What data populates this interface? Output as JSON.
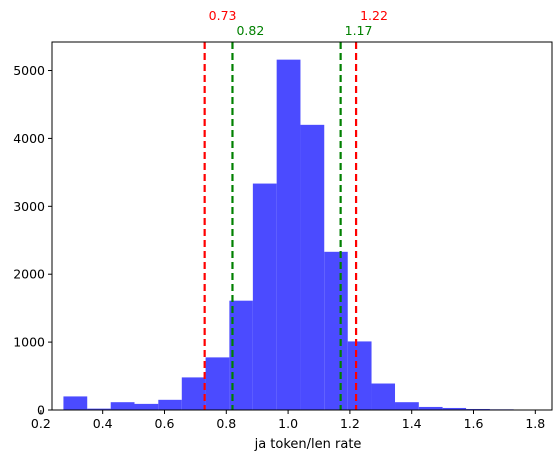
{
  "chart_data": {
    "type": "bar",
    "title": "",
    "xlabel": "ja token/len rate",
    "ylabel": "",
    "xlim": [
      0.236,
      1.854
    ],
    "ylim": [
      0,
      5420
    ],
    "x_ticks": [
      0.2,
      0.4,
      0.6,
      0.8,
      1.0,
      1.2,
      1.4,
      1.6,
      1.8
    ],
    "x_tick_labels": [
      "0.2",
      "0.4",
      "0.6",
      "0.8",
      "1.0",
      "1.2",
      "1.4",
      "1.6",
      "1.8"
    ],
    "y_ticks": [
      0,
      1000,
      2000,
      3000,
      4000,
      5000
    ],
    "y_tick_labels": [
      "0",
      "1000",
      "2000",
      "3000",
      "4000",
      "5000"
    ],
    "bar_color": "#4b4bff",
    "bins": [
      {
        "x0": 0.273,
        "x1": 0.35,
        "value": 200
      },
      {
        "x0": 0.35,
        "x1": 0.426,
        "value": 20
      },
      {
        "x0": 0.426,
        "x1": 0.503,
        "value": 115
      },
      {
        "x0": 0.503,
        "x1": 0.58,
        "value": 90
      },
      {
        "x0": 0.58,
        "x1": 0.656,
        "value": 150
      },
      {
        "x0": 0.656,
        "x1": 0.733,
        "value": 480
      },
      {
        "x0": 0.733,
        "x1": 0.81,
        "value": 775
      },
      {
        "x0": 0.81,
        "x1": 0.886,
        "value": 1610
      },
      {
        "x0": 0.886,
        "x1": 0.963,
        "value": 3335
      },
      {
        "x0": 0.963,
        "x1": 1.04,
        "value": 5160
      },
      {
        "x0": 1.04,
        "x1": 1.117,
        "value": 4200
      },
      {
        "x0": 1.117,
        "x1": 1.193,
        "value": 2330
      },
      {
        "x0": 1.193,
        "x1": 1.27,
        "value": 1010
      },
      {
        "x0": 1.27,
        "x1": 1.346,
        "value": 390
      },
      {
        "x0": 1.346,
        "x1": 1.423,
        "value": 115
      },
      {
        "x0": 1.423,
        "x1": 1.5,
        "value": 45
      },
      {
        "x0": 1.5,
        "x1": 1.576,
        "value": 30
      },
      {
        "x0": 1.576,
        "x1": 1.653,
        "value": 15
      },
      {
        "x0": 1.653,
        "x1": 1.73,
        "value": 10
      },
      {
        "x0": 1.73,
        "x1": 1.806,
        "value": 5
      }
    ],
    "reference_lines": [
      {
        "x": 0.73,
        "label": "0.73",
        "color": "#ff0000",
        "label_row": "upper"
      },
      {
        "x": 1.22,
        "label": "1.22",
        "color": "#ff0000",
        "label_row": "upper"
      },
      {
        "x": 0.82,
        "label": "0.82",
        "color": "#008000",
        "label_row": "lower"
      },
      {
        "x": 1.17,
        "label": "1.17",
        "color": "#008000",
        "label_row": "lower"
      }
    ],
    "grid": false
  }
}
